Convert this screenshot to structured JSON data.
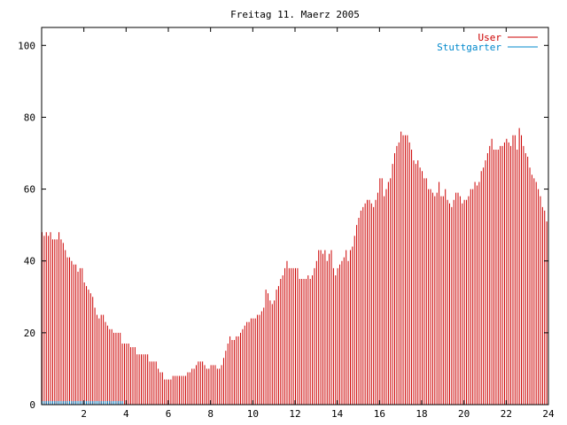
{
  "chart_data": {
    "type": "bar",
    "title": "Freitag 11. Maerz 2005",
    "xlabel": "",
    "ylabel": "",
    "xlim": [
      0,
      24
    ],
    "ylim": [
      0,
      105
    ],
    "x_ticks": [
      "2",
      "4",
      "6",
      "8",
      "10",
      "12",
      "14",
      "16",
      "18",
      "20",
      "22",
      "24"
    ],
    "y_ticks": [
      "0",
      "20",
      "40",
      "60",
      "80",
      "100"
    ],
    "grid": false,
    "legend_position": "top-right",
    "x_step_hours": 0.1,
    "series": [
      {
        "name": "User",
        "color": "#cc0000",
        "values": [
          48,
          47,
          48,
          47,
          48,
          46,
          46,
          46,
          48,
          46,
          45,
          43,
          41,
          41,
          40,
          39,
          39,
          37,
          38,
          38,
          34,
          33,
          32,
          31,
          30,
          27,
          25,
          24,
          25,
          25,
          23,
          22,
          21,
          21,
          20,
          20,
          20,
          20,
          17,
          17,
          17,
          17,
          16,
          16,
          16,
          14,
          14,
          14,
          14,
          14,
          14,
          12,
          12,
          12,
          12,
          10,
          9,
          9,
          7,
          7,
          7,
          7,
          8,
          8,
          8,
          8,
          8,
          8,
          8,
          9,
          9,
          10,
          10,
          11,
          12,
          12,
          12,
          11,
          10,
          10,
          11,
          11,
          11,
          10,
          10,
          11,
          13,
          15,
          17,
          19,
          18,
          18,
          19,
          19,
          20,
          21,
          22,
          23,
          23,
          24,
          24,
          24,
          25,
          25,
          26,
          27,
          32,
          31,
          29,
          28,
          29,
          32,
          33,
          35,
          36,
          38,
          40,
          38,
          38,
          38,
          38,
          38,
          35,
          35,
          35,
          35,
          36,
          35,
          36,
          38,
          40,
          43,
          43,
          42,
          43,
          40,
          42,
          43,
          38,
          36,
          38,
          39,
          40,
          41,
          43,
          40,
          43,
          44,
          47,
          50,
          52,
          54,
          55,
          56,
          57,
          57,
          56,
          55,
          57,
          59,
          63,
          63,
          58,
          60,
          62,
          63,
          67,
          70,
          72,
          73,
          76,
          75,
          75,
          75,
          73,
          71,
          68,
          67,
          68,
          66,
          65,
          63,
          63,
          60,
          60,
          59,
          58,
          59,
          62,
          58,
          58,
          60,
          57,
          56,
          55,
          57,
          59,
          59,
          58,
          56,
          57,
          57,
          58,
          60,
          60,
          62,
          61,
          62,
          65,
          66,
          68,
          70,
          72,
          74,
          71,
          71,
          71,
          72,
          72,
          73,
          74,
          73,
          72,
          75,
          75,
          71,
          77,
          75,
          72,
          70,
          69,
          66,
          64,
          63,
          62,
          60,
          58,
          55,
          54,
          51
        ]
      },
      {
        "name": "Stuttgarter",
        "color": "#0088cc",
        "values": [
          1,
          1,
          1,
          1,
          1,
          1,
          1,
          1,
          1,
          1,
          1,
          1,
          1,
          1,
          1,
          1,
          1,
          1,
          1,
          1,
          1,
          1,
          1,
          1,
          1,
          1,
          1,
          1,
          1,
          1,
          1,
          1,
          1,
          1,
          1,
          1,
          1,
          1,
          1,
          0
        ]
      }
    ]
  }
}
